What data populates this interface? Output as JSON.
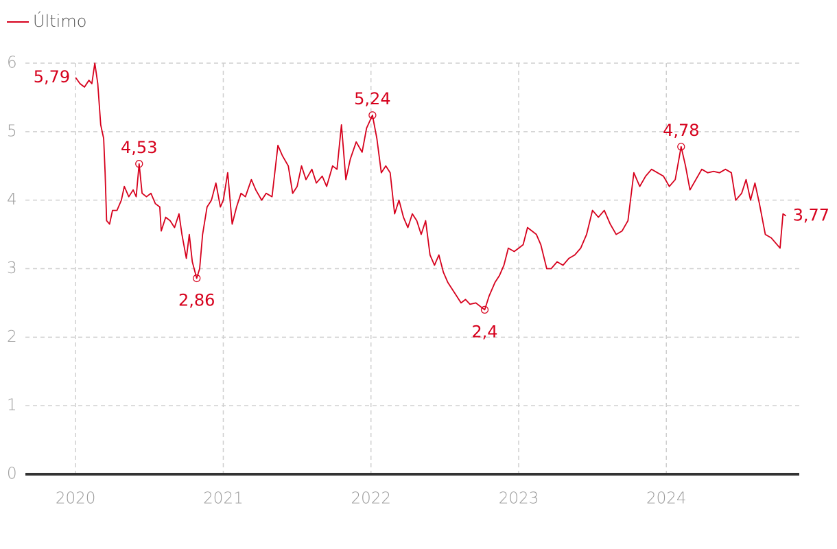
{
  "chart_data": {
    "type": "line",
    "legend": "top-left",
    "grid": true,
    "xlim": [
      2019.66,
      2024.9
    ],
    "xticks": [
      2020,
      2021,
      2022,
      2023,
      2024
    ],
    "ylim": [
      0,
      6
    ],
    "yticks": [
      0,
      1,
      2,
      3,
      4,
      5,
      6
    ],
    "x": [
      2020.0,
      2020.03,
      2020.06,
      2020.09,
      2020.11,
      2020.13,
      2020.15,
      2020.17,
      2020.19,
      2020.2,
      2020.21,
      2020.23,
      2020.25,
      2020.28,
      2020.31,
      2020.33,
      2020.36,
      2020.39,
      2020.41,
      2020.43,
      2020.45,
      2020.48,
      2020.51,
      2020.54,
      2020.57,
      2020.58,
      2020.61,
      2020.64,
      2020.67,
      2020.7,
      2020.72,
      2020.75,
      2020.77,
      2020.79,
      2020.82,
      2020.84,
      2020.86,
      2020.89,
      2020.92,
      2020.95,
      2020.98,
      2021.0,
      2021.03,
      2021.06,
      2021.09,
      2021.12,
      2021.15,
      2021.19,
      2021.22,
      2021.26,
      2021.29,
      2021.33,
      2021.37,
      2021.4,
      2021.44,
      2021.47,
      2021.5,
      2021.53,
      2021.56,
      2021.6,
      2021.63,
      2021.67,
      2021.7,
      2021.74,
      2021.77,
      2021.8,
      2021.83,
      2021.86,
      2021.9,
      2021.94,
      2021.97,
      2022.01,
      2022.04,
      2022.07,
      2022.1,
      2022.13,
      2022.16,
      2022.19,
      2022.22,
      2022.25,
      2022.28,
      2022.31,
      2022.34,
      2022.37,
      2022.4,
      2022.43,
      2022.46,
      2022.49,
      2022.52,
      2022.55,
      2022.58,
      2022.61,
      2022.64,
      2022.67,
      2022.71,
      2022.74,
      2022.77,
      2022.8,
      2022.84,
      2022.87,
      2022.9,
      2022.93,
      2022.97,
      2023.0,
      2023.03,
      2023.06,
      2023.09,
      2023.12,
      2023.15,
      2023.19,
      2023.22,
      2023.26,
      2023.3,
      2023.34,
      2023.38,
      2023.42,
      2023.46,
      2023.5,
      2023.54,
      2023.58,
      2023.62,
      2023.66,
      2023.7,
      2023.74,
      2023.78,
      2023.82,
      2023.86,
      2023.9,
      2023.94,
      2023.98,
      2024.02,
      2024.06,
      2024.1,
      2024.13,
      2024.16,
      2024.2,
      2024.24,
      2024.28,
      2024.32,
      2024.36,
      2024.4,
      2024.44,
      2024.47,
      2024.51,
      2024.54,
      2024.57,
      2024.6,
      2024.63,
      2024.67,
      2024.71,
      2024.75,
      2024.77,
      2024.79,
      2024.81
    ],
    "series": [
      {
        "name": "Último",
        "color": "#d6001c",
        "values": [
          5.79,
          5.7,
          5.65,
          5.75,
          5.7,
          6.0,
          5.7,
          5.1,
          4.9,
          4.4,
          3.7,
          3.65,
          3.85,
          3.85,
          4.0,
          4.2,
          4.05,
          4.15,
          4.05,
          4.53,
          4.1,
          4.05,
          4.1,
          3.95,
          3.9,
          3.55,
          3.75,
          3.7,
          3.6,
          3.8,
          3.5,
          3.15,
          3.5,
          3.1,
          2.86,
          3.0,
          3.5,
          3.9,
          4.0,
          4.25,
          3.9,
          4.0,
          4.4,
          3.65,
          3.9,
          4.1,
          4.05,
          4.3,
          4.15,
          4.0,
          4.1,
          4.05,
          4.8,
          4.65,
          4.5,
          4.1,
          4.2,
          4.5,
          4.3,
          4.45,
          4.25,
          4.35,
          4.2,
          4.5,
          4.45,
          5.1,
          4.3,
          4.6,
          4.85,
          4.7,
          5.05,
          5.24,
          4.9,
          4.4,
          4.5,
          4.4,
          3.8,
          4.0,
          3.75,
          3.6,
          3.8,
          3.7,
          3.5,
          3.7,
          3.2,
          3.05,
          3.2,
          2.95,
          2.8,
          2.7,
          2.6,
          2.5,
          2.55,
          2.48,
          2.5,
          2.45,
          2.4,
          2.6,
          2.8,
          2.9,
          3.05,
          3.3,
          3.25,
          3.3,
          3.35,
          3.6,
          3.55,
          3.5,
          3.35,
          3.0,
          3.0,
          3.1,
          3.05,
          3.15,
          3.2,
          3.3,
          3.5,
          3.85,
          3.75,
          3.85,
          3.65,
          3.5,
          3.55,
          3.7,
          4.4,
          4.2,
          4.35,
          4.45,
          4.4,
          4.35,
          4.2,
          4.3,
          4.78,
          4.5,
          4.15,
          4.3,
          4.45,
          4.4,
          4.42,
          4.4,
          4.45,
          4.4,
          4.0,
          4.1,
          4.3,
          4.0,
          4.25,
          3.95,
          3.5,
          3.45,
          3.35,
          3.3,
          3.8,
          3.77
        ]
      }
    ],
    "annotations": [
      {
        "x": 2020.0,
        "value": 5.79,
        "label": "5,79",
        "marker": false
      },
      {
        "x": 2020.43,
        "value": 4.53,
        "label": "4,53",
        "marker": true
      },
      {
        "x": 2020.82,
        "value": 2.86,
        "label": "2,86",
        "marker": true
      },
      {
        "x": 2022.01,
        "value": 5.24,
        "label": "5,24",
        "marker": true
      },
      {
        "x": 2022.77,
        "value": 2.4,
        "label": "2,4",
        "marker": true
      },
      {
        "x": 2024.1,
        "value": 4.78,
        "label": "4,78",
        "marker": true
      },
      {
        "x": 2024.81,
        "value": 3.77,
        "label": "3,77",
        "marker": false
      }
    ]
  }
}
